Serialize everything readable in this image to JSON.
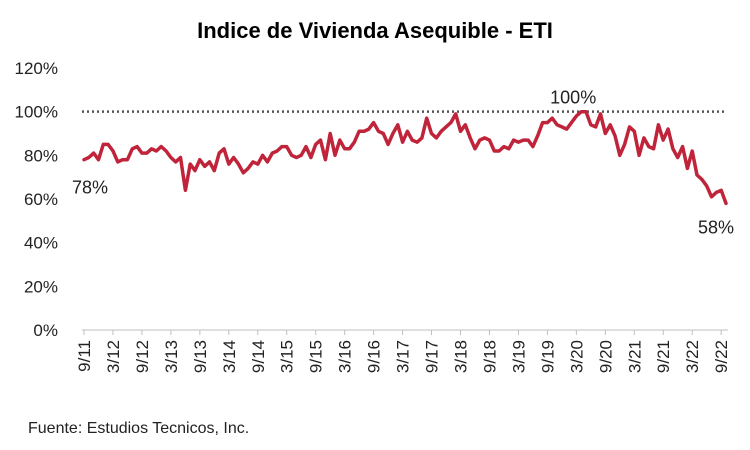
{
  "chart_data": {
    "type": "line",
    "title": "Indice de Vivienda Asequible - ETI",
    "xlabel": "",
    "ylabel": "",
    "ylim": [
      0,
      120
    ],
    "yticks": [
      "0%",
      "20%",
      "40%",
      "60%",
      "80%",
      "100%",
      "120%"
    ],
    "ytick_values": [
      0,
      20,
      40,
      60,
      80,
      100,
      120
    ],
    "xticks": [
      {
        "label": "9/11",
        "index": 0
      },
      {
        "label": "3/12",
        "index": 6
      },
      {
        "label": "9/12",
        "index": 12
      },
      {
        "label": "3/13",
        "index": 18
      },
      {
        "label": "9/13",
        "index": 24
      },
      {
        "label": "3/14",
        "index": 30
      },
      {
        "label": "9/14",
        "index": 36
      },
      {
        "label": "3/15",
        "index": 42
      },
      {
        "label": "9/15",
        "index": 48
      },
      {
        "label": "3/16",
        "index": 54
      },
      {
        "label": "9/16",
        "index": 60
      },
      {
        "label": "3/17",
        "index": 66
      },
      {
        "label": "9/17",
        "index": 72
      },
      {
        "label": "3/18",
        "index": 78
      },
      {
        "label": "9/18",
        "index": 84
      },
      {
        "label": "3/19",
        "index": 90
      },
      {
        "label": "9/19",
        "index": 96
      },
      {
        "label": "3/20",
        "index": 102
      },
      {
        "label": "9/20",
        "index": 108
      },
      {
        "label": "3/21",
        "index": 114
      },
      {
        "label": "9/21",
        "index": 120
      },
      {
        "label": "3/22",
        "index": 126
      },
      {
        "label": "9/22",
        "index": 132
      }
    ],
    "reference_line": {
      "value": 100,
      "style": "dotted"
    },
    "series": [
      {
        "color": "#C0243A",
        "values": [
          78,
          79,
          81,
          78,
          85,
          85,
          82,
          77,
          78,
          78,
          83,
          84,
          81,
          81,
          83,
          82,
          84,
          82,
          79,
          77,
          79,
          64,
          76,
          73,
          78,
          75,
          77,
          73,
          81,
          83,
          76,
          79,
          76,
          72,
          74,
          77,
          76,
          80,
          77,
          81,
          82,
          84,
          84,
          80,
          79,
          80,
          84,
          79,
          85,
          87,
          78,
          90,
          80,
          87,
          83,
          83,
          86,
          91,
          91,
          92,
          95,
          91,
          90,
          85,
          90,
          94,
          86,
          91,
          87,
          86,
          88,
          97,
          90,
          88,
          91,
          93,
          95,
          99,
          91,
          94,
          88,
          83,
          87,
          88,
          87,
          82,
          82,
          84,
          83,
          87,
          86,
          87,
          87,
          84,
          89,
          95,
          95,
          97,
          94,
          93,
          92,
          95,
          98,
          100,
          100,
          94,
          93,
          99,
          90,
          94,
          89,
          80,
          85,
          93,
          91,
          80,
          88,
          84,
          83,
          94,
          87,
          92,
          83,
          79,
          84,
          74,
          82,
          71,
          69,
          66,
          61,
          63,
          64,
          58
        ],
        "annotations": [
          {
            "index": 0,
            "text": "78%"
          },
          {
            "index": 103,
            "text": "100%"
          },
          {
            "index": 133,
            "text": "58%"
          }
        ]
      }
    ],
    "grid": false,
    "legend": "none"
  },
  "source": "Fuente: Estudios Tecnicos, Inc."
}
